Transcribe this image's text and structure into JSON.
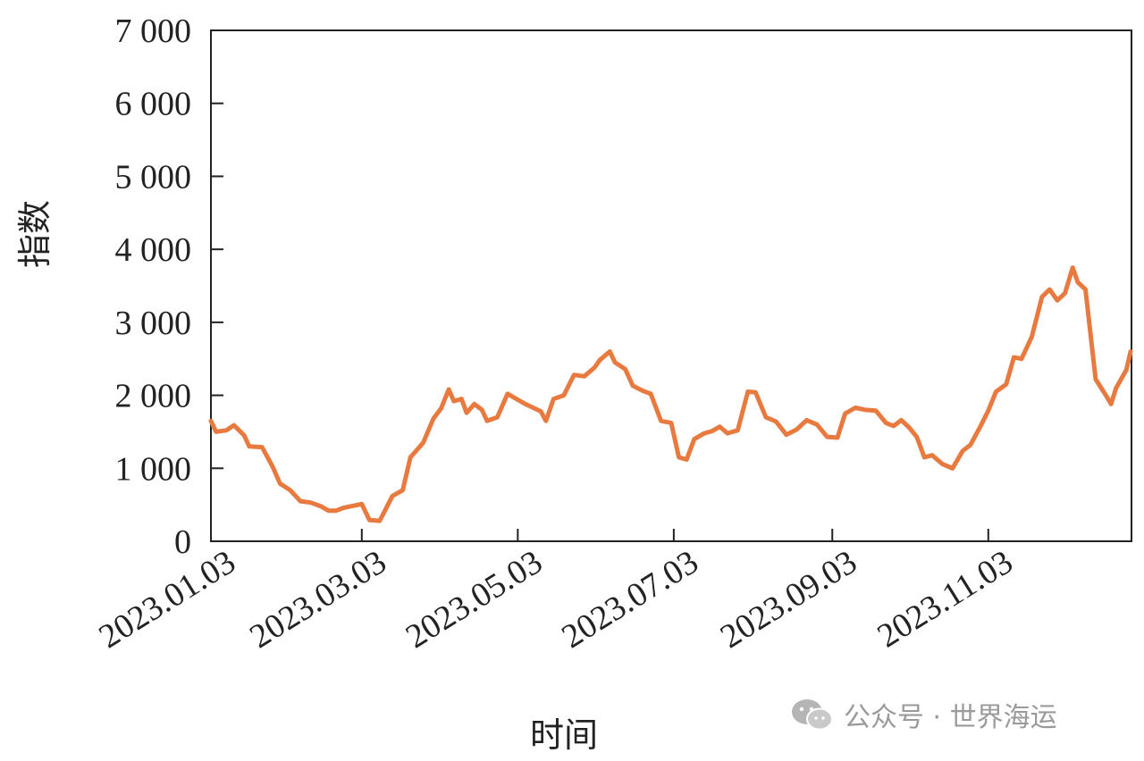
{
  "chart_data": {
    "type": "line",
    "title": "",
    "xlabel": "时间",
    "ylabel": "指数",
    "xlim": [
      "2023-01-03",
      "2023-12-29"
    ],
    "ylim": [
      0,
      7000
    ],
    "yticks": [
      0,
      1000,
      2000,
      3000,
      4000,
      5000,
      6000,
      7000
    ],
    "ytick_labels": [
      "0",
      "1 000",
      "2 000",
      "3 000",
      "4 000",
      "5 000",
      "6 000",
      "7 000"
    ],
    "xticks": [
      "2023-01-03",
      "2023-03-03",
      "2023-05-03",
      "2023-07-03",
      "2023-09-03",
      "2023-11-03"
    ],
    "xtick_labels": [
      "2023.01.03",
      "2023.03.03",
      "2023.05.03",
      "2023.07.03",
      "2023.09.03",
      "2023.11.03"
    ],
    "grid": false,
    "color": "#e8793f",
    "series": [
      {
        "points": [
          [
            "2023-01-03",
            1650
          ],
          [
            "2023-01-05",
            1500
          ],
          [
            "2023-01-09",
            1520
          ],
          [
            "2023-01-12",
            1590
          ],
          [
            "2023-01-16",
            1450
          ],
          [
            "2023-01-18",
            1300
          ],
          [
            "2023-01-23",
            1290
          ],
          [
            "2023-01-27",
            1030
          ],
          [
            "2023-01-30",
            790
          ],
          [
            "2023-02-03",
            700
          ],
          [
            "2023-02-07",
            550
          ],
          [
            "2023-02-11",
            530
          ],
          [
            "2023-02-15",
            480
          ],
          [
            "2023-02-18",
            420
          ],
          [
            "2023-02-21",
            420
          ],
          [
            "2023-02-24",
            460
          ],
          [
            "2023-03-03",
            510
          ],
          [
            "2023-03-06",
            290
          ],
          [
            "2023-03-10",
            280
          ],
          [
            "2023-03-15",
            620
          ],
          [
            "2023-03-19",
            700
          ],
          [
            "2023-03-22",
            1150
          ],
          [
            "2023-03-27",
            1350
          ],
          [
            "2023-03-31",
            1680
          ],
          [
            "2023-04-03",
            1820
          ],
          [
            "2023-04-06",
            2080
          ],
          [
            "2023-04-08",
            1920
          ],
          [
            "2023-04-11",
            1950
          ],
          [
            "2023-04-13",
            1760
          ],
          [
            "2023-04-16",
            1880
          ],
          [
            "2023-04-19",
            1800
          ],
          [
            "2023-04-21",
            1650
          ],
          [
            "2023-04-25",
            1700
          ],
          [
            "2023-04-29",
            2020
          ],
          [
            "2023-05-03",
            1940
          ],
          [
            "2023-05-06",
            1880
          ],
          [
            "2023-05-09",
            1830
          ],
          [
            "2023-05-12",
            1780
          ],
          [
            "2023-05-14",
            1650
          ],
          [
            "2023-05-17",
            1950
          ],
          [
            "2023-05-21",
            2000
          ],
          [
            "2023-05-25",
            2280
          ],
          [
            "2023-05-29",
            2260
          ],
          [
            "2023-06-02",
            2380
          ],
          [
            "2023-06-04",
            2480
          ],
          [
            "2023-06-08",
            2600
          ],
          [
            "2023-06-10",
            2450
          ],
          [
            "2023-06-14",
            2360
          ],
          [
            "2023-06-17",
            2130
          ],
          [
            "2023-06-21",
            2060
          ],
          [
            "2023-06-24",
            2020
          ],
          [
            "2023-06-28",
            1650
          ],
          [
            "2023-07-02",
            1620
          ],
          [
            "2023-07-05",
            1150
          ],
          [
            "2023-07-08",
            1120
          ],
          [
            "2023-07-11",
            1400
          ],
          [
            "2023-07-15",
            1480
          ],
          [
            "2023-07-18",
            1510
          ],
          [
            "2023-07-21",
            1570
          ],
          [
            "2023-07-24",
            1480
          ],
          [
            "2023-07-28",
            1520
          ],
          [
            "2023-08-01",
            2050
          ],
          [
            "2023-08-04",
            2040
          ],
          [
            "2023-08-08",
            1700
          ],
          [
            "2023-08-12",
            1640
          ],
          [
            "2023-08-16",
            1460
          ],
          [
            "2023-08-20",
            1530
          ],
          [
            "2023-08-24",
            1660
          ],
          [
            "2023-08-28",
            1600
          ],
          [
            "2023-09-01",
            1430
          ],
          [
            "2023-09-05",
            1420
          ],
          [
            "2023-09-08",
            1750
          ],
          [
            "2023-09-12",
            1830
          ],
          [
            "2023-09-16",
            1800
          ],
          [
            "2023-09-20",
            1790
          ],
          [
            "2023-09-24",
            1620
          ],
          [
            "2023-09-27",
            1580
          ],
          [
            "2023-09-30",
            1660
          ],
          [
            "2023-10-03",
            1560
          ],
          [
            "2023-10-06",
            1430
          ],
          [
            "2023-10-09",
            1150
          ],
          [
            "2023-10-12",
            1180
          ],
          [
            "2023-10-16",
            1060
          ],
          [
            "2023-10-20",
            1000
          ],
          [
            "2023-10-24",
            1240
          ],
          [
            "2023-10-27",
            1320
          ],
          [
            "2023-10-31",
            1580
          ],
          [
            "2023-11-03",
            1790
          ],
          [
            "2023-11-06",
            2050
          ],
          [
            "2023-11-10",
            2150
          ],
          [
            "2023-11-13",
            2520
          ],
          [
            "2023-11-16",
            2500
          ],
          [
            "2023-11-20",
            2800
          ],
          [
            "2023-11-24",
            3350
          ],
          [
            "2023-11-27",
            3450
          ],
          [
            "2023-11-30",
            3300
          ],
          [
            "2023-12-03",
            3400
          ],
          [
            "2023-12-06",
            3750
          ],
          [
            "2023-12-08",
            3550
          ],
          [
            "2023-12-11",
            3450
          ],
          [
            "2023-12-15",
            2220
          ],
          [
            "2023-12-19",
            2000
          ],
          [
            "2023-12-21",
            1880
          ],
          [
            "2023-12-23",
            2100
          ],
          [
            "2023-12-27",
            2350
          ],
          [
            "2023-12-31",
            2600
          ]
        ]
      }
    ]
  },
  "watermark": {
    "text": "公众号 · 世界海运",
    "icon": "wechat-icon"
  }
}
